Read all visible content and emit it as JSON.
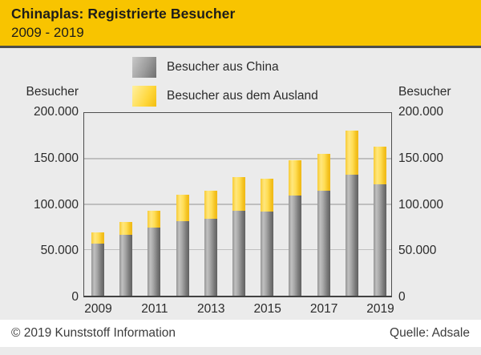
{
  "header": {
    "title": "Chinaplas: Registrierte Besucher",
    "subtitle": "2009 - 2019"
  },
  "legend": {
    "items": [
      {
        "label": "Besucher aus China",
        "swatch": "gray"
      },
      {
        "label": "Besucher aus dem Ausland",
        "swatch": "yellow"
      }
    ]
  },
  "axis": {
    "left_title": "Besucher",
    "right_title": "Besucher"
  },
  "footer": {
    "copyright": "© 2019 Kunststoff Information",
    "source": "Quelle: Adsale"
  },
  "colors": {
    "header_bg": "#F8C400",
    "divider": "#4D4D4B",
    "chart_bg": "#EBEBEB",
    "grid": "#BFBFBF",
    "frame": "#4E4E4E",
    "bar_china": "#8F8F8F",
    "bar_ausland": "#FFD94E",
    "footer_bg": "#FFFFFF",
    "text": "#2B2B2B"
  },
  "chart_data": {
    "type": "bar",
    "stacked": true,
    "title": "Chinaplas: Registrierte Besucher 2009 - 2019",
    "xlabel": "",
    "ylabel": "Besucher",
    "ylim": [
      0,
      200000
    ],
    "grid": "horizontal",
    "legend_position": "top",
    "categories": [
      2009,
      2010,
      2011,
      2012,
      2013,
      2014,
      2015,
      2016,
      2017,
      2018,
      2019
    ],
    "series": [
      {
        "name": "Besucher aus China",
        "values": [
          57000,
          67000,
          75000,
          82000,
          84000,
          93500,
          92500,
          110000,
          115000,
          133000,
          122000
        ]
      },
      {
        "name": "Besucher aus dem Ausland",
        "values": [
          12300,
          13500,
          18500,
          28500,
          31000,
          37000,
          35500,
          39000,
          41000,
          48000,
          41500
        ]
      }
    ],
    "totals": [
      69300,
      80500,
      93500,
      110500,
      115000,
      130500,
      128000,
      149000,
      156000,
      181000,
      163500
    ],
    "y_ticks": [
      {
        "value": 0,
        "label": "0"
      },
      {
        "value": 50000,
        "label": "50.000"
      },
      {
        "value": 100000,
        "label": "100.000"
      },
      {
        "value": 150000,
        "label": "150.000"
      },
      {
        "value": 200000,
        "label": "200.000"
      }
    ],
    "x_tick_labels": [
      "2009",
      "2011",
      "2013",
      "2015",
      "2017",
      "2019"
    ],
    "x_tick_positions": [
      0,
      2,
      4,
      6,
      8,
      10
    ]
  }
}
